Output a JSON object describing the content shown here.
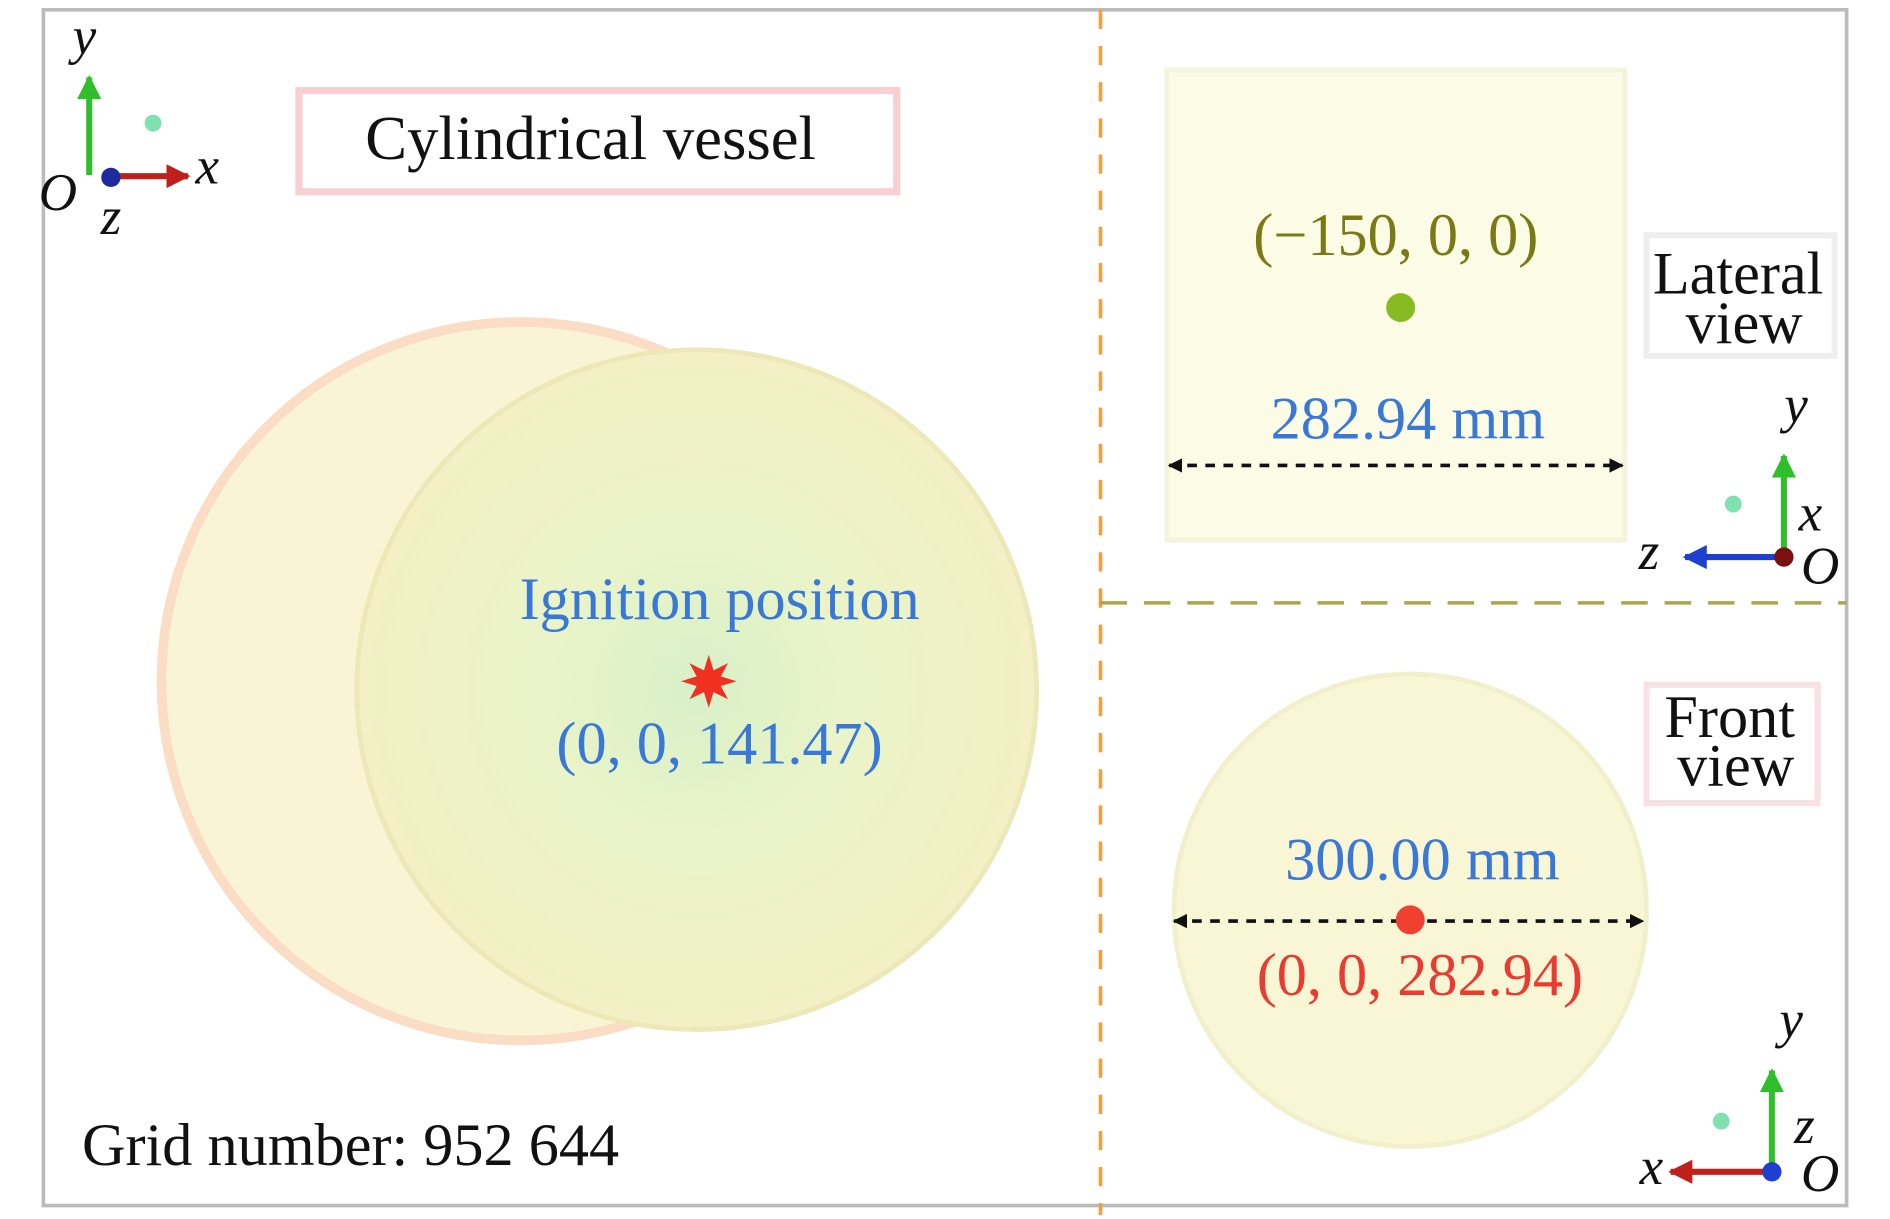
{
  "title": "Cylindrical vessel",
  "grid_number": "Grid number: 952 644",
  "main_view": {
    "ignition_label": "Ignition position",
    "ignition_coords": "(0, 0, 141.47)",
    "axes": {
      "y": "y",
      "x": "x",
      "origin": "O",
      "z": "z"
    }
  },
  "lateral_view": {
    "label": [
      "Lateral",
      "view"
    ],
    "point_coords": "(−150, 0, 0)",
    "dimension": "282.94 mm",
    "axes": {
      "y": "y",
      "x": "x",
      "z": "z",
      "origin": "O"
    }
  },
  "front_view": {
    "label": [
      "Front",
      "view"
    ],
    "dimension": "300.00 mm",
    "point_coords": "(0, 0, 282.94)",
    "axes": {
      "y": "y",
      "z": "z",
      "x": "x",
      "origin": "O"
    }
  }
}
